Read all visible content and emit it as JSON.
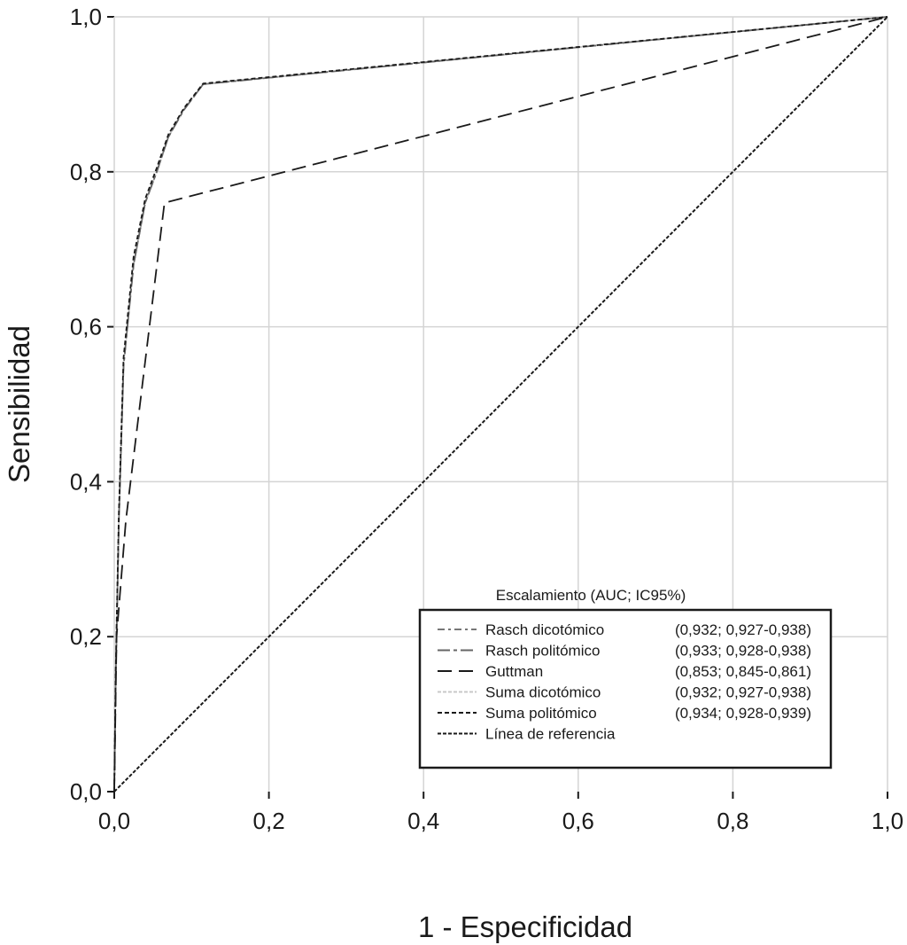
{
  "chart_data": {
    "type": "line",
    "title": "",
    "xlabel": "1 - Especificidad",
    "ylabel": "Sensibilidad",
    "xlim": [
      0,
      1
    ],
    "ylim": [
      0,
      1
    ],
    "grid": true,
    "x_ticks": [
      "0,0",
      "0,2",
      "0,4",
      "0,6",
      "0,8",
      "1,0"
    ],
    "y_ticks": [
      "0,0",
      "0,2",
      "0,4",
      "0,6",
      "0,8",
      "1,0"
    ],
    "tick_values": [
      0,
      0.2,
      0.4,
      0.6,
      0.8,
      1.0
    ],
    "legend": {
      "title": "Escalamiento (AUC; IC95%)",
      "placement": "bottom-right"
    },
    "series": [
      {
        "name": "Rasch dicotómico",
        "stat": "(0,932; 0,927-0,938)",
        "color": "#777777",
        "dash": "8 4 3 4",
        "points": [
          [
            0,
            0
          ],
          [
            0.002,
            0.15
          ],
          [
            0.006,
            0.35
          ],
          [
            0.012,
            0.55
          ],
          [
            0.025,
            0.68
          ],
          [
            0.04,
            0.76
          ],
          [
            0.055,
            0.8
          ],
          [
            0.07,
            0.845
          ],
          [
            0.09,
            0.88
          ],
          [
            0.115,
            0.913
          ],
          [
            1,
            1
          ]
        ]
      },
      {
        "name": "Rasch politómico",
        "stat": "(0,933; 0,928-0,938)",
        "color": "#666666",
        "dash": "14 4 4 4",
        "points": [
          [
            0,
            0
          ],
          [
            0.002,
            0.15
          ],
          [
            0.006,
            0.35
          ],
          [
            0.012,
            0.55
          ],
          [
            0.025,
            0.68
          ],
          [
            0.04,
            0.76
          ],
          [
            0.055,
            0.8
          ],
          [
            0.07,
            0.845
          ],
          [
            0.09,
            0.88
          ],
          [
            0.115,
            0.913
          ],
          [
            1,
            1
          ]
        ]
      },
      {
        "name": "Guttman",
        "stat": "(0,853; 0,845-0,861)",
        "color": "#1a1a1a",
        "dash": "16 8",
        "points": [
          [
            0,
            0
          ],
          [
            0.003,
            0.2
          ],
          [
            0.015,
            0.35
          ],
          [
            0.065,
            0.76
          ],
          [
            1,
            1
          ]
        ]
      },
      {
        "name": "Suma dicotómico",
        "stat": "(0,932; 0,927-0,938)",
        "color": "#c8c8c8",
        "dash": "4 2",
        "points": [
          [
            0,
            0
          ],
          [
            0.002,
            0.15
          ],
          [
            0.006,
            0.35
          ],
          [
            0.012,
            0.55
          ],
          [
            0.025,
            0.68
          ],
          [
            0.04,
            0.76
          ],
          [
            0.055,
            0.8
          ],
          [
            0.07,
            0.845
          ],
          [
            0.09,
            0.88
          ],
          [
            0.115,
            0.913
          ],
          [
            1,
            1
          ]
        ]
      },
      {
        "name": "Suma politómico",
        "stat": "(0,934; 0,928-0,939)",
        "color": "#1a1a1a",
        "dash": "5 3",
        "points": [
          [
            0,
            0
          ],
          [
            0.002,
            0.16
          ],
          [
            0.006,
            0.36
          ],
          [
            0.012,
            0.56
          ],
          [
            0.025,
            0.69
          ],
          [
            0.04,
            0.765
          ],
          [
            0.055,
            0.805
          ],
          [
            0.07,
            0.848
          ],
          [
            0.09,
            0.882
          ],
          [
            0.115,
            0.914
          ],
          [
            1,
            1
          ]
        ]
      },
      {
        "name": "Línea de referencia",
        "stat": "",
        "color": "#1a1a1a",
        "dash": "4 2",
        "points": [
          [
            0,
            0
          ],
          [
            1,
            1
          ]
        ]
      }
    ]
  }
}
